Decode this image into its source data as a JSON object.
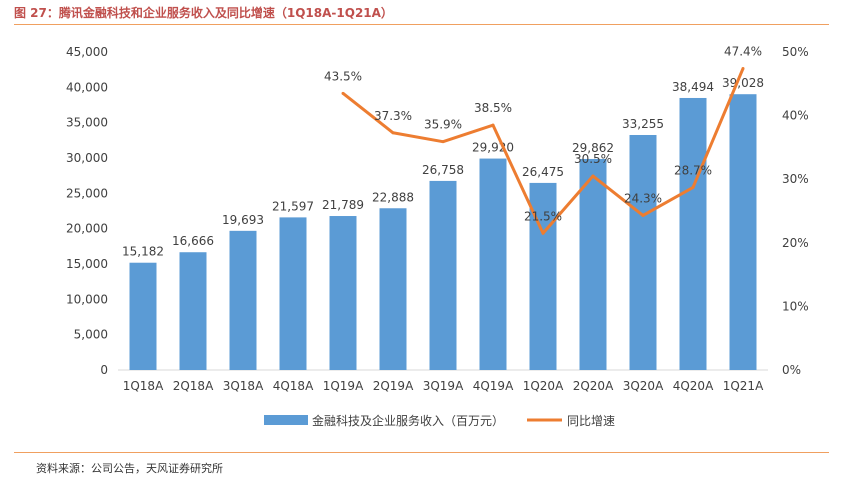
{
  "figure": {
    "title": "图 27：腾讯金融科技和企业服务收入及同比增速（1Q18A-1Q21A）",
    "source": "资料来源：公司公告，天风证券研究所"
  },
  "colors": {
    "bar": "#5b9bd5",
    "line": "#ed7d31",
    "title": "#c0504d",
    "rule": "#f0a060",
    "text": "#404040"
  },
  "chart_data": {
    "type": "bar",
    "categories": [
      "1Q18A",
      "2Q18A",
      "3Q18A",
      "4Q18A",
      "1Q19A",
      "2Q19A",
      "3Q19A",
      "4Q19A",
      "1Q20A",
      "2Q20A",
      "3Q20A",
      "4Q20A",
      "1Q21A"
    ],
    "series": [
      {
        "name": "金融科技及企业服务收入（百万元）",
        "type": "bar",
        "axis": "left",
        "values": [
          15182,
          16666,
          19693,
          21597,
          21789,
          22888,
          26758,
          29920,
          26475,
          29862,
          33255,
          38494,
          39028
        ],
        "labels": [
          "15,182",
          "16,666",
          "19,693",
          "21,597",
          "21,789",
          "22,888",
          "26,758",
          "29,920",
          "26,475",
          "29,862",
          "33,255",
          "38,494",
          "39,028"
        ]
      },
      {
        "name": "同比增速",
        "type": "line",
        "axis": "right",
        "values": [
          null,
          null,
          null,
          null,
          43.5,
          37.3,
          35.9,
          38.5,
          21.5,
          30.5,
          24.3,
          28.7,
          47.4
        ],
        "labels": [
          null,
          null,
          null,
          null,
          "43.5%",
          "37.3%",
          "35.9%",
          "38.5%",
          "21.5%",
          "30.5%",
          "24.3%",
          "28.7%",
          "47.4%"
        ]
      }
    ],
    "ylim_left": [
      0,
      45000
    ],
    "yticks_left": [
      "0",
      "5,000",
      "10,000",
      "15,000",
      "20,000",
      "25,000",
      "30,000",
      "35,000",
      "40,000",
      "45,000"
    ],
    "ylim_right": [
      0,
      50
    ],
    "yticks_right": [
      "0%",
      "10%",
      "20%",
      "30%",
      "40%",
      "50%"
    ],
    "grid": false,
    "legend_position": "bottom"
  }
}
